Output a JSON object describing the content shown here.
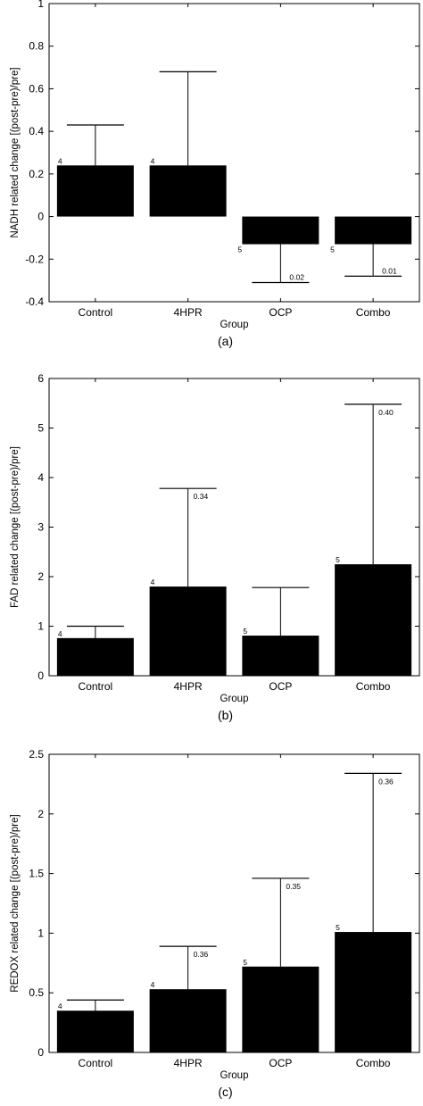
{
  "chart_data": [
    {
      "type": "bar",
      "caption": "(a)",
      "xlabel": "Group",
      "ylabel": "NADH related change [(post-pre)/pre]",
      "categories": [
        "Control",
        "4HPR",
        "OCP",
        "Combo"
      ],
      "values": [
        0.24,
        0.24,
        -0.13,
        -0.13
      ],
      "error_upper": [
        0.43,
        0.68,
        null,
        null
      ],
      "error_lower": [
        null,
        null,
        -0.31,
        -0.28
      ],
      "n_labels": [
        "4",
        "4",
        "5",
        "5"
      ],
      "p_labels": [
        "",
        "",
        "0.02",
        "0.01"
      ],
      "ylim": [
        -0.4,
        1
      ],
      "yticks": [
        -0.4,
        -0.2,
        0,
        0.2,
        0.4,
        0.6,
        0.8,
        1
      ],
      "ytick_labels": [
        "-0.4",
        "-0.2",
        "0",
        "0.2",
        "0.4",
        "0.6",
        "0.8",
        "1"
      ]
    },
    {
      "type": "bar",
      "caption": "(b)",
      "xlabel": "Group",
      "ylabel": "FAD related change [(post-pre)/pre]",
      "categories": [
        "Control",
        "4HPR",
        "OCP",
        "Combo"
      ],
      "values": [
        0.76,
        1.8,
        0.81,
        2.25
      ],
      "error_upper": [
        1.0,
        3.78,
        1.78,
        5.48
      ],
      "error_lower": [
        null,
        null,
        null,
        null
      ],
      "n_labels": [
        "4",
        "4",
        "5",
        "5"
      ],
      "p_labels": [
        "",
        "0.34",
        "",
        "0.40"
      ],
      "ylim": [
        0,
        6
      ],
      "yticks": [
        0,
        1,
        2,
        3,
        4,
        5,
        6
      ],
      "ytick_labels": [
        "0",
        "1",
        "2",
        "3",
        "4",
        "5",
        "6"
      ]
    },
    {
      "type": "bar",
      "caption": "(c)",
      "xlabel": "Group",
      "ylabel": "REDOX related change [(post-pre)/pre]",
      "categories": [
        "Control",
        "4HPR",
        "OCP",
        "Combo"
      ],
      "values": [
        0.35,
        0.53,
        0.72,
        1.01
      ],
      "error_upper": [
        0.44,
        0.89,
        1.46,
        2.34
      ],
      "error_lower": [
        null,
        null,
        null,
        null
      ],
      "n_labels": [
        "4",
        "4",
        "5",
        "5"
      ],
      "p_labels": [
        "",
        "0.36",
        "0.35",
        "0.36"
      ],
      "ylim": [
        0,
        2.5
      ],
      "yticks": [
        0,
        0.5,
        1,
        1.5,
        2,
        2.5
      ],
      "ytick_labels": [
        "0",
        "0.5",
        "1",
        "1.5",
        "2",
        "2.5"
      ]
    }
  ]
}
